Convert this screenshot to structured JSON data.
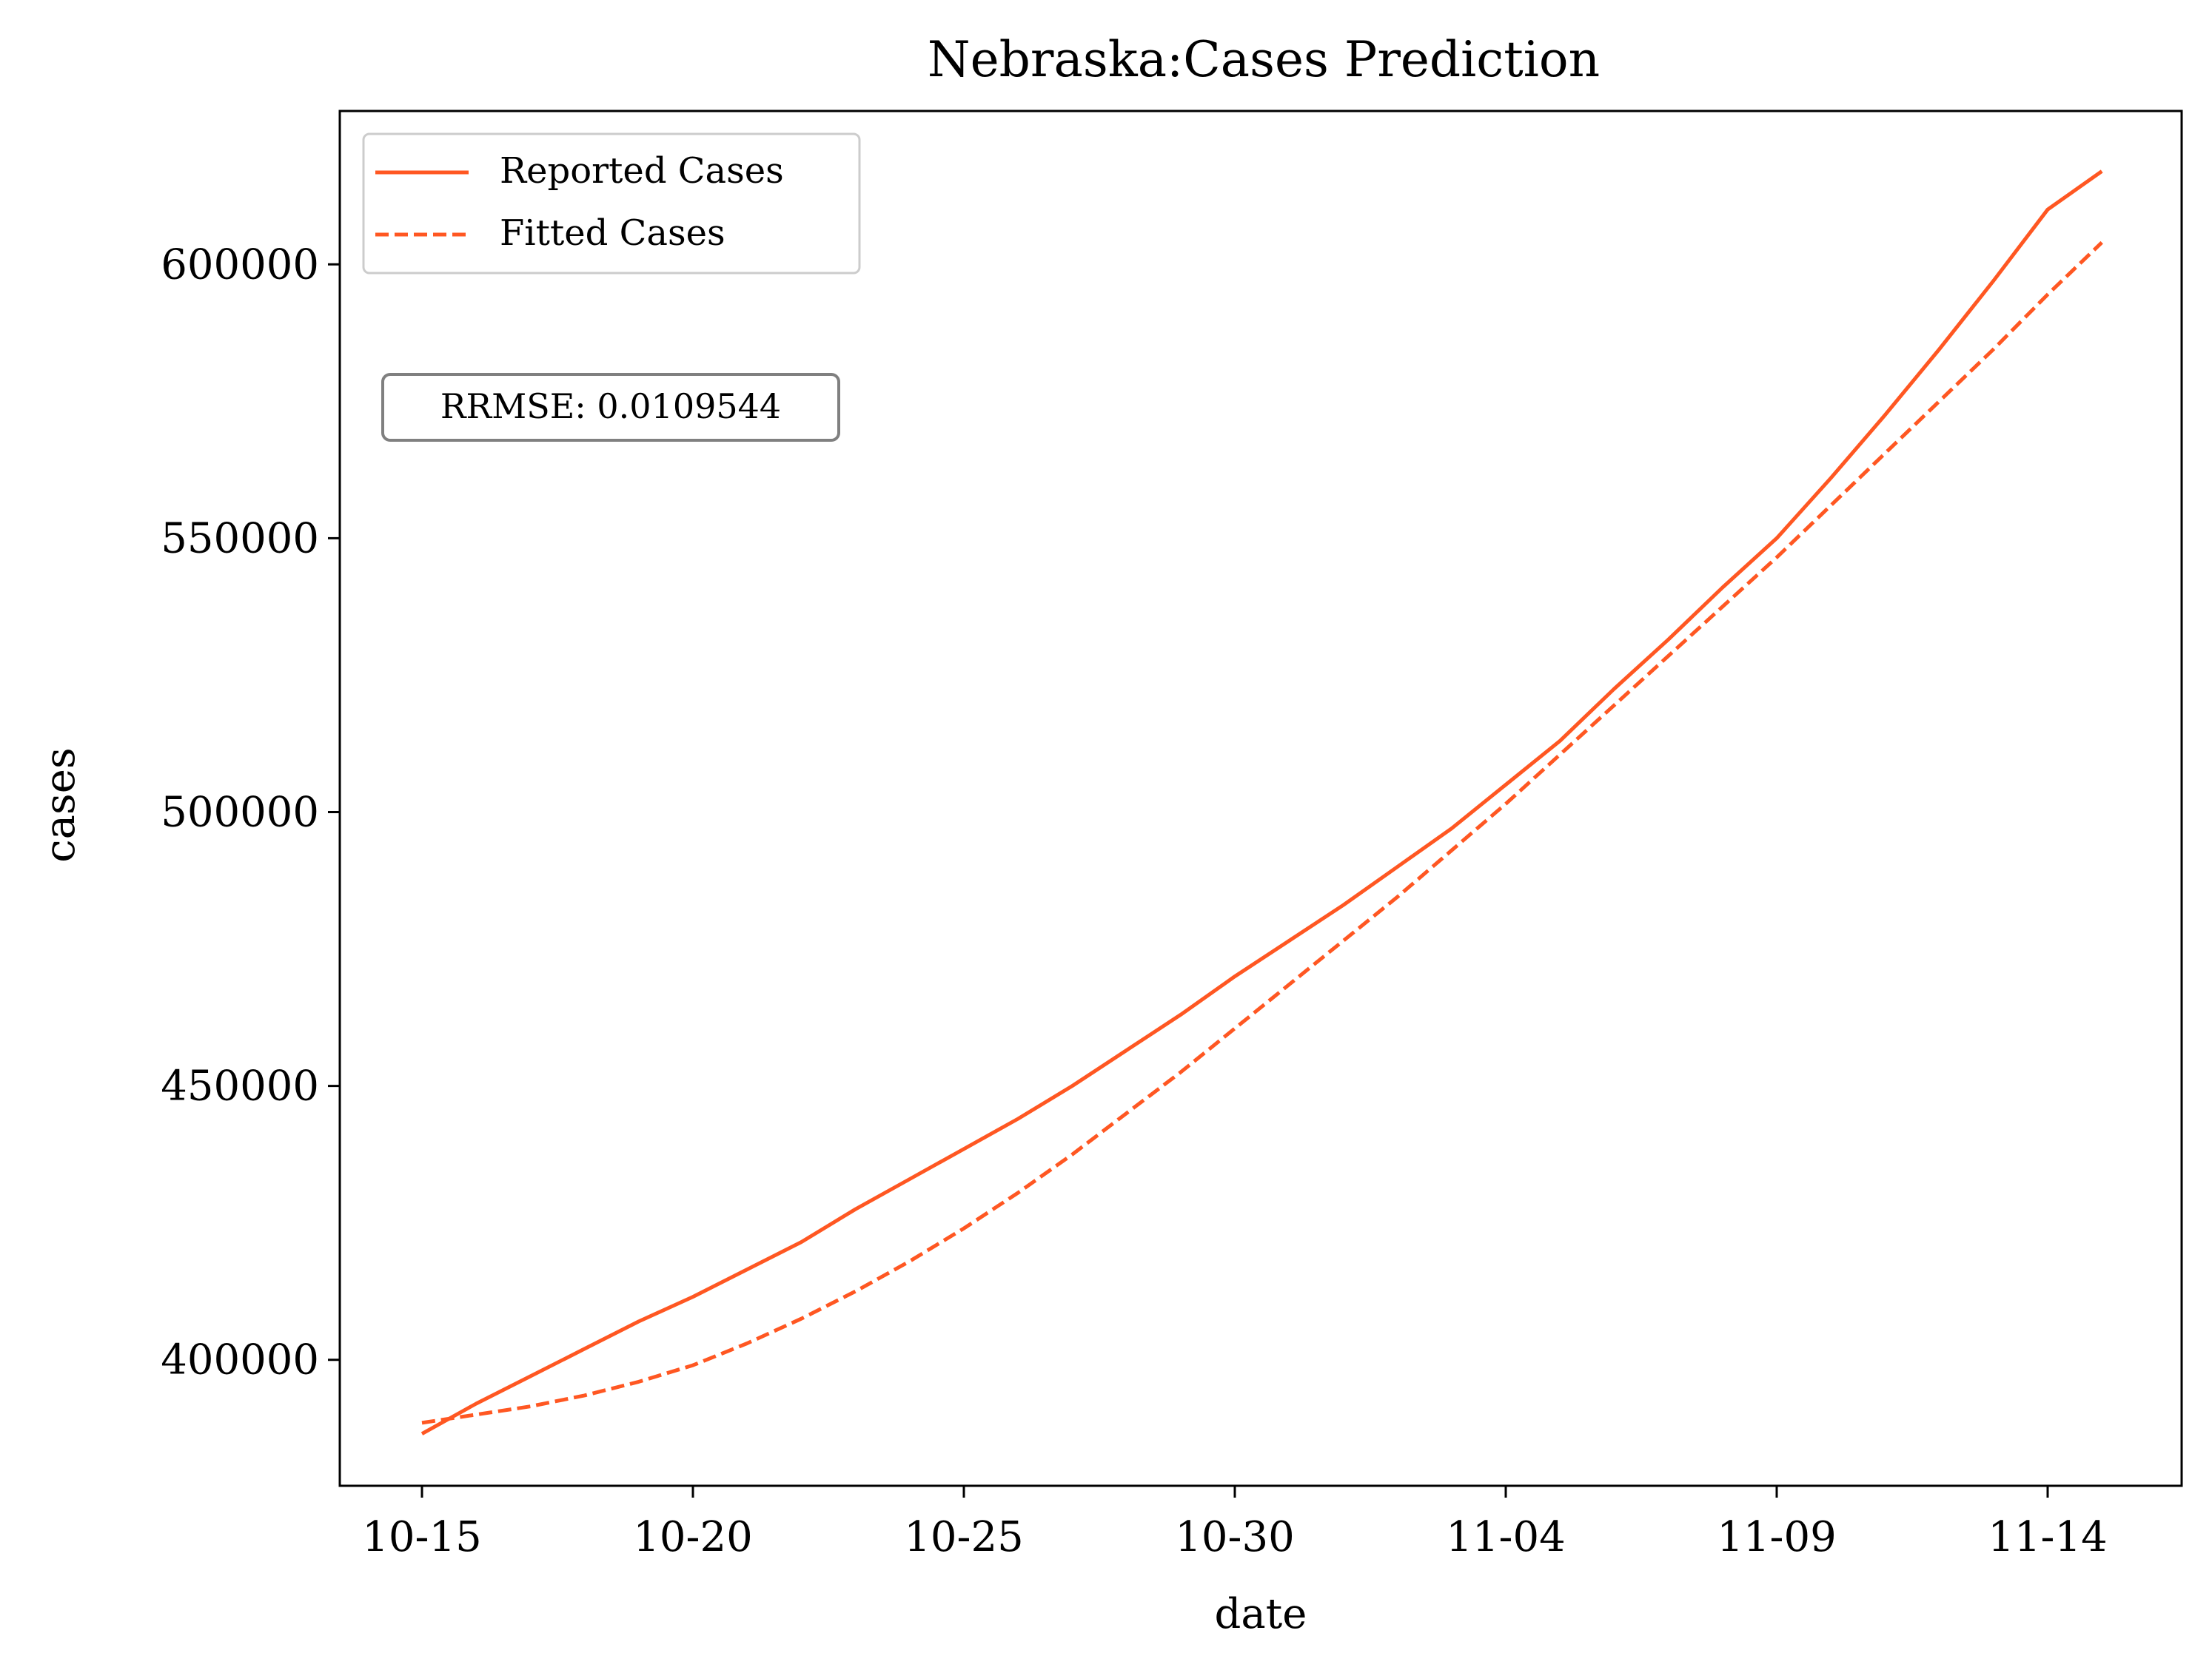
{
  "chart_data": {
    "type": "line",
    "title": "Nebraska:Cases Prediction",
    "xlabel": "date",
    "ylabel": "cases",
    "x": [
      "10-15",
      "10-16",
      "10-17",
      "10-18",
      "10-19",
      "10-20",
      "10-21",
      "10-22",
      "10-23",
      "10-24",
      "10-25",
      "10-26",
      "10-27",
      "10-28",
      "10-29",
      "10-30",
      "10-31",
      "11-01",
      "11-02",
      "11-03",
      "11-04",
      "11-05",
      "11-06",
      "11-07",
      "11-08",
      "11-09",
      "11-10",
      "11-11",
      "11-12",
      "11-13",
      "11-14",
      "11-15"
    ],
    "x_ticks": [
      "10-15",
      "10-20",
      "10-25",
      "10-30",
      "11-04",
      "11-09",
      "11-14"
    ],
    "y_ticks": [
      400000,
      450000,
      500000,
      550000,
      600000
    ],
    "ylim": [
      377000,
      628000
    ],
    "grid": false,
    "legend_position": "top-left",
    "colors": {
      "line": "#ff5722",
      "axis": "#000000",
      "annotation_border": "#808080"
    },
    "series": [
      {
        "name": "Reported Cases",
        "style": "solid",
        "values": [
          386500,
          392000,
          397000,
          402000,
          407000,
          411500,
          416500,
          421500,
          427500,
          433000,
          438500,
          444000,
          450000,
          456500,
          463000,
          470000,
          476500,
          483000,
          490000,
          497000,
          505000,
          513000,
          522500,
          531500,
          541000,
          550000,
          561000,
          572500,
          584500,
          597000,
          610000,
          617000
        ]
      },
      {
        "name": "Fitted Cases",
        "style": "dashed",
        "values": [
          388500,
          390000,
          391500,
          393500,
          396000,
          399000,
          403000,
          407500,
          412500,
          418000,
          424000,
          430500,
          437500,
          445000,
          452500,
          460500,
          468500,
          476500,
          484500,
          493000,
          501500,
          510500,
          519500,
          528500,
          537500,
          546500,
          556000,
          565500,
          575000,
          584500,
          594500,
          604000
        ]
      }
    ],
    "annotation": "RRMSE: 0.0109544"
  }
}
